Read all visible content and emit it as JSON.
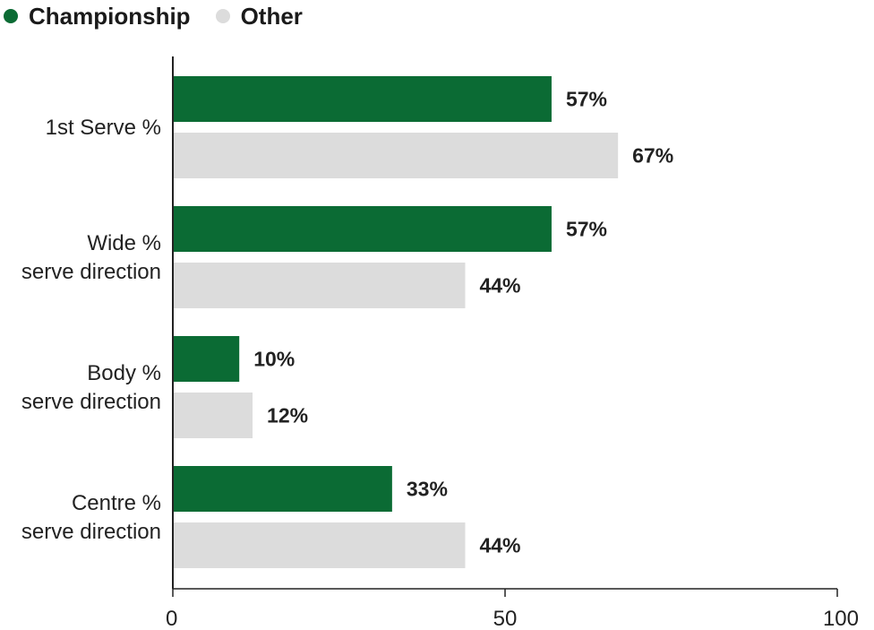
{
  "chart_data": {
    "type": "bar",
    "orientation": "horizontal",
    "categories": [
      [
        "1st Serve %"
      ],
      [
        "Wide %",
        "serve direction"
      ],
      [
        "Body %",
        "serve direction"
      ],
      [
        "Centre %",
        "serve direction"
      ]
    ],
    "series": [
      {
        "name": "Championship",
        "color": "#0b6b34",
        "values": [
          57,
          57,
          10,
          33
        ],
        "labels": [
          "57%",
          "57%",
          "10%",
          "33%"
        ]
      },
      {
        "name": "Other",
        "color": "#dcdcdc",
        "values": [
          67,
          44,
          12,
          44
        ],
        "labels": [
          "67%",
          "44%",
          "12%",
          "44%"
        ]
      }
    ],
    "xlim": [
      0,
      100
    ],
    "xticks": [
      "0",
      "50",
      "100"
    ],
    "legend_position": "top-left",
    "grid": false
  }
}
